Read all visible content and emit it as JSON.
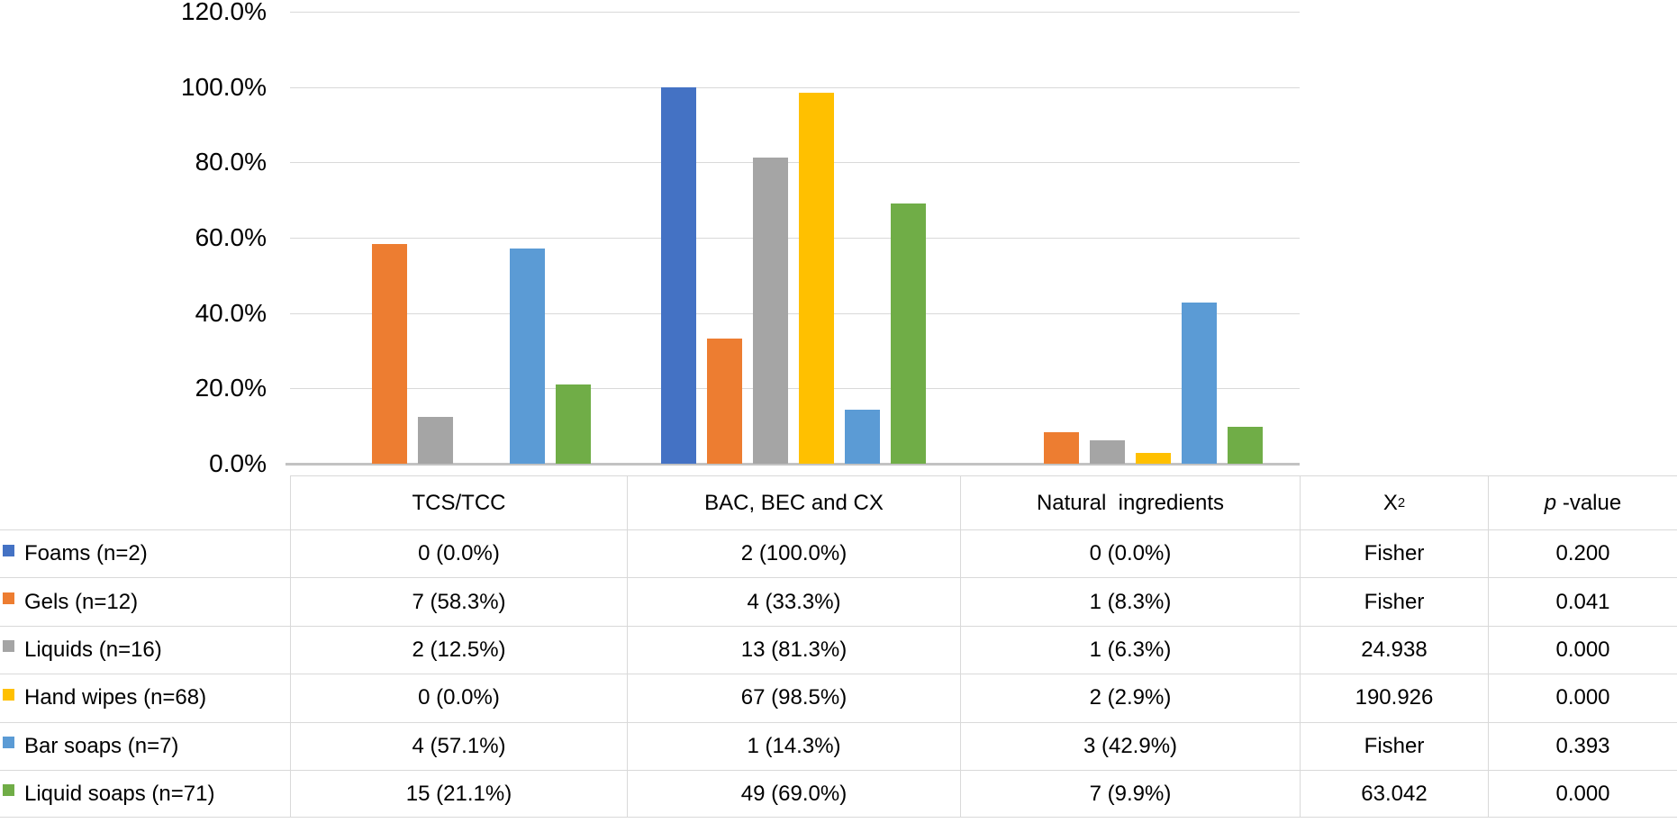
{
  "chart_data": {
    "type": "bar",
    "title": "",
    "xlabel": "",
    "ylabel": "",
    "categories": [
      "TCS/TCC",
      "BAC, BEC and CX",
      "Natural  ingredients"
    ],
    "series": [
      {
        "name": "Foams (n=2)",
        "color": "#4472C4",
        "values": [
          0.0,
          100.0,
          0.0
        ]
      },
      {
        "name": "Gels (n=12)",
        "color": "#ED7D31",
        "values": [
          58.3,
          33.3,
          8.3
        ]
      },
      {
        "name": "Liquids (n=16)",
        "color": "#A5A5A5",
        "values": [
          12.5,
          81.3,
          6.3
        ]
      },
      {
        "name": "Hand wipes (n=68)",
        "color": "#FFC000",
        "values": [
          0.0,
          98.5,
          2.9
        ]
      },
      {
        "name": "Bar soaps (n=7)",
        "color": "#5B9BD5",
        "values": [
          57.1,
          14.3,
          42.9
        ]
      },
      {
        "name": "Liquid soaps (n=71)",
        "color": "#70AD47",
        "values": [
          21.1,
          69.0,
          9.9
        ]
      }
    ],
    "ylim": [
      0,
      120
    ],
    "yticks": [
      {
        "value": 120,
        "label": "120.0%"
      },
      {
        "value": 100,
        "label": "100.0%"
      },
      {
        "value": 80,
        "label": "80.0%"
      },
      {
        "value": 60,
        "label": "60.0%"
      },
      {
        "value": 40,
        "label": "40.0%"
      },
      {
        "value": 20,
        "label": "20.0%"
      },
      {
        "value": 0,
        "label": "0.0%"
      }
    ],
    "grid": true,
    "gridline_color": "#D9D9D9",
    "axis_line_color": "#C3C3C3",
    "legend_position": "data-table-rows"
  },
  "table": {
    "headers": {
      "col1": "TCS/TCC",
      "col2": "BAC, BEC and CX",
      "col3": "Natural  ingredients",
      "chi_base": "X",
      "chi_sup": "2",
      "p_italic": "p",
      "p_rest": " -value"
    },
    "rows": [
      {
        "label": "Foams (n=2)",
        "tcs": "0 (0.0%)",
        "bac": "2 (100.0%)",
        "natural": "0 (0.0%)",
        "chi": "Fisher",
        "p": "0.200"
      },
      {
        "label": "Gels (n=12)",
        "tcs": "7 (58.3%)",
        "bac": "4 (33.3%)",
        "natural": "1 (8.3%)",
        "chi": "Fisher",
        "p": "0.041"
      },
      {
        "label": "Liquids (n=16)",
        "tcs": "2 (12.5%)",
        "bac": "13 (81.3%)",
        "natural": "1 (6.3%)",
        "chi": "24.938",
        "p": "0.000"
      },
      {
        "label": "Hand wipes (n=68)",
        "tcs": "0 (0.0%)",
        "bac": "67 (98.5%)",
        "natural": "2 (2.9%)",
        "chi": "190.926",
        "p": "0.000"
      },
      {
        "label": "Bar soaps (n=7)",
        "tcs": "4 (57.1%)",
        "bac": "1 (14.3%)",
        "natural": "3 (42.9%)",
        "chi": "Fisher",
        "p": "0.393"
      },
      {
        "label": "Liquid soaps (n=71)",
        "tcs": "15 (21.1%)",
        "bac": "49 (69.0%)",
        "natural": "7 (9.9%)",
        "chi": "63.042",
        "p": "0.000"
      }
    ]
  }
}
